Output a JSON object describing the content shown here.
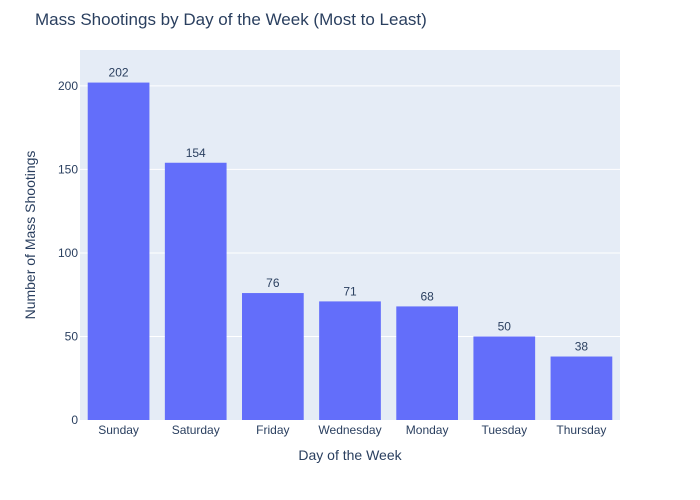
{
  "chart_data": {
    "type": "bar",
    "title": "Mass Shootings by Day of the Week (Most to Least)",
    "xlabel": "Day of the Week",
    "ylabel": "Number of Mass Shootings",
    "categories": [
      "Sunday",
      "Saturday",
      "Friday",
      "Wednesday",
      "Monday",
      "Tuesday",
      "Thursday"
    ],
    "values": [
      202,
      154,
      76,
      71,
      68,
      50,
      38
    ],
    "ylim": [
      0,
      221.5
    ],
    "yticks": [
      0,
      50,
      100,
      150,
      200
    ],
    "grid": true,
    "legend": "none",
    "colors": {
      "bar": "#636efa",
      "plot_background": "#e5ecf6",
      "grid": "#ffffff",
      "text": "#2a3f5f"
    }
  }
}
